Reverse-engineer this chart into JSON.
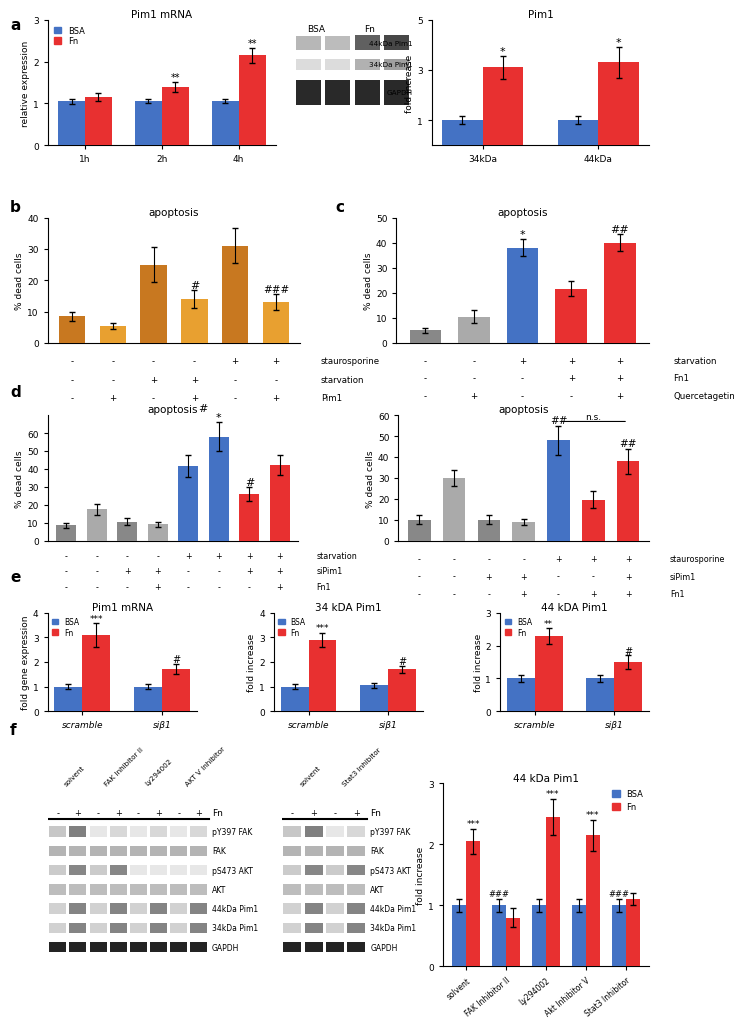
{
  "panel_a": {
    "mrna_title": "Pim1 mRNA",
    "mrna_xlabel_ticks": [
      "1h",
      "2h",
      "4h"
    ],
    "mrna_ylabel": "relative expression",
    "mrna_bsa": [
      1.05,
      1.05,
      1.05
    ],
    "mrna_fn": [
      1.15,
      1.4,
      2.15
    ],
    "mrna_err_bsa": [
      0.06,
      0.05,
      0.05
    ],
    "mrna_err_fn": [
      0.1,
      0.12,
      0.18
    ],
    "mrna_ylim": [
      0,
      3
    ],
    "mrna_yticks": [
      0,
      1,
      2,
      3
    ],
    "pim1_title": "Pim1",
    "pim1_xlabel_ticks": [
      "34kDa",
      "44kDa"
    ],
    "pim1_ylabel": "fold increase",
    "pim1_bsa": [
      1.0,
      1.0
    ],
    "pim1_fn": [
      3.1,
      3.3
    ],
    "pim1_err_bsa": [
      0.15,
      0.15
    ],
    "pim1_err_fn": [
      0.45,
      0.6
    ],
    "pim1_ylim": [
      0,
      5
    ],
    "pim1_yticks": [
      1,
      3,
      5
    ]
  },
  "panel_b": {
    "title": "apoptosis",
    "ylabel": "% dead cells",
    "ylim": [
      0,
      40
    ],
    "yticks": [
      0,
      10,
      20,
      30,
      40
    ],
    "bar_values": [
      8.5,
      5.5,
      25.0,
      14.0,
      31.0,
      13.0
    ],
    "bar_errors": [
      1.5,
      1.0,
      5.5,
      3.0,
      5.5,
      2.5
    ],
    "bar_colors": [
      "#c87820",
      "#e8a030",
      "#c87820",
      "#e8a030",
      "#c87820",
      "#e8a030"
    ],
    "labels_staurosporine": [
      "-",
      "-",
      "-",
      "-",
      "+",
      "+"
    ],
    "labels_starvation": [
      "-",
      "-",
      "+",
      "+",
      "-",
      "-"
    ],
    "labels_pim1": [
      "-",
      "+",
      "-",
      "+",
      "-",
      "+"
    ]
  },
  "panel_c": {
    "title": "apoptosis",
    "ylabel": "% dead cells",
    "ylim": [
      0,
      50
    ],
    "yticks": [
      0,
      10,
      20,
      30,
      40,
      50
    ],
    "bar_values": [
      5.0,
      10.5,
      38.0,
      21.5,
      40.0
    ],
    "bar_errors": [
      1.0,
      2.5,
      3.5,
      3.0,
      3.5
    ],
    "bar_colors": [
      "#888888",
      "#aaaaaa",
      "#4472c4",
      "#e83030",
      "#e83030"
    ],
    "labels_starvation": [
      "-",
      "-",
      "+",
      "+",
      "+"
    ],
    "labels_fn1": [
      "-",
      "-",
      "-",
      "+",
      "+"
    ],
    "labels_quercetagetin": [
      "-",
      "+",
      "-",
      "-",
      "+"
    ]
  },
  "panel_d_left": {
    "title": "apoptosis",
    "ylabel": "% dead cells",
    "ylim": [
      0,
      70
    ],
    "yticks": [
      0,
      10,
      20,
      30,
      40,
      50,
      60
    ],
    "bar_values": [
      8.5,
      17.5,
      10.5,
      9.0,
      41.5,
      58.0,
      26.0,
      42.0
    ],
    "bar_errors": [
      1.5,
      3.0,
      2.0,
      1.5,
      6.0,
      8.0,
      4.0,
      5.5
    ],
    "bar_colors": [
      "#888888",
      "#aaaaaa",
      "#888888",
      "#aaaaaa",
      "#4472c4",
      "#4472c4",
      "#e83030",
      "#e83030"
    ],
    "labels_starvation": [
      "-",
      "-",
      "-",
      "-",
      "+",
      "+",
      "+",
      "+"
    ],
    "labels_sipim1": [
      "-",
      "-",
      "+",
      "+",
      "-",
      "-",
      "+",
      "+"
    ],
    "labels_fn1": [
      "-",
      "-",
      "-",
      "+",
      "-",
      "-",
      "-",
      "+"
    ]
  },
  "panel_d_right": {
    "title": "apoptosis",
    "ylabel": "% dead cells",
    "ylim": [
      0,
      60
    ],
    "yticks": [
      0,
      10,
      20,
      30,
      40,
      50,
      60
    ],
    "bar_values": [
      10.0,
      30.0,
      10.0,
      9.0,
      48.0,
      19.5,
      38.0
    ],
    "bar_errors": [
      2.0,
      4.0,
      2.0,
      1.5,
      7.0,
      4.0,
      6.0
    ],
    "bar_colors": [
      "#888888",
      "#aaaaaa",
      "#888888",
      "#aaaaaa",
      "#4472c4",
      "#e83030",
      "#e83030"
    ],
    "labels_staurosporine": [
      "-",
      "-",
      "-",
      "-",
      "+",
      "+",
      "+"
    ],
    "labels_sipim1": [
      "-",
      "-",
      "+",
      "+",
      "-",
      "-",
      "+"
    ],
    "labels_fn1": [
      "-",
      "-",
      "-",
      "+",
      "-",
      "+",
      "+"
    ]
  },
  "panel_e_mrna": {
    "title": "Pim1 mRNA",
    "ylabel": "fold gene expression",
    "ylim": [
      0,
      4
    ],
    "yticks": [
      0,
      1,
      2,
      3,
      4
    ],
    "bar_values_bsa": [
      1.0,
      1.0
    ],
    "bar_values_fn": [
      3.1,
      1.7
    ],
    "bar_errors_bsa": [
      0.1,
      0.1
    ],
    "bar_errors_fn": [
      0.5,
      0.2
    ],
    "xtick_labels": [
      "scramble",
      "siβ1"
    ]
  },
  "panel_e_34kda": {
    "title": "34 kDA Pim1",
    "ylabel": "fold increase",
    "ylim": [
      0,
      4
    ],
    "yticks": [
      0,
      1,
      2,
      3,
      4
    ],
    "bar_values_bsa": [
      1.0,
      1.05
    ],
    "bar_values_fn": [
      2.9,
      1.7
    ],
    "bar_errors_bsa": [
      0.1,
      0.1
    ],
    "bar_errors_fn": [
      0.3,
      0.15
    ],
    "xtick_labels": [
      "scramble",
      "siβ1"
    ]
  },
  "panel_e_44kda": {
    "title": "44 kDA Pim1",
    "ylabel": "fold increase",
    "ylim": [
      0,
      3
    ],
    "yticks": [
      0,
      1,
      2,
      3
    ],
    "bar_values_bsa": [
      1.0,
      1.0
    ],
    "bar_values_fn": [
      2.3,
      1.5
    ],
    "bar_errors_bsa": [
      0.1,
      0.1
    ],
    "bar_errors_fn": [
      0.25,
      0.2
    ],
    "xtick_labels": [
      "scramble",
      "siβ1"
    ]
  },
  "panel_f_bar": {
    "title": "44 kDa Pim1",
    "ylabel": "fold increase",
    "ylim": [
      0,
      3
    ],
    "yticks": [
      0,
      1,
      2,
      3
    ],
    "bar_values_bsa": [
      1.0,
      1.0,
      1.0,
      1.0,
      1.0
    ],
    "bar_values_fn": [
      2.05,
      0.8,
      2.45,
      2.15,
      1.1
    ],
    "bar_errors_bsa": [
      0.1,
      0.1,
      0.1,
      0.1,
      0.1
    ],
    "bar_errors_fn": [
      0.2,
      0.15,
      0.3,
      0.25,
      0.1
    ],
    "xtick_labels": [
      "solvent",
      "FAK Inhibitor II",
      "Ly294002",
      "Akt Inhibitor V",
      "Stat3 Inhibitor"
    ]
  },
  "wb_f_row_labels": [
    "pY397 FAK",
    "FAK",
    "pS473 AKT",
    "AKT",
    "44kDa Pim1",
    "34kDa Pim1",
    "GAPDH"
  ],
  "wb_f_inhib1": [
    "solvent",
    "FAK Inhibitor II",
    "Ly294002",
    "AKT V Inhibitor"
  ],
  "wb_f_inhib2": [
    "solvent",
    "Stat3 Inhibitor"
  ],
  "colors": {
    "bsa_blue": "#4472c4",
    "fn_red": "#e83030",
    "brown_dark": "#c87820",
    "orange_light": "#e8a030",
    "gray_dark": "#888888",
    "gray_light": "#aaaaaa"
  }
}
